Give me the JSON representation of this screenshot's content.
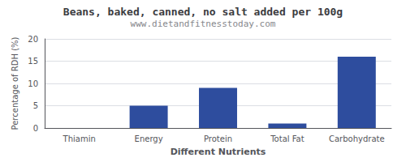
{
  "chart_data": {
    "type": "bar",
    "title": "Beans, baked, canned, no salt added per 100g",
    "subtitle": "www.dietandfitnesstoday.com",
    "xlabel": "Different Nutrients",
    "ylabel": "Percentage of RDH (%)",
    "categories": [
      "Thiamin",
      "Energy",
      "Protein",
      "Total Fat",
      "Carbohydrate"
    ],
    "values": [
      0,
      5,
      9,
      1,
      16
    ],
    "color": "#2e4d9e",
    "ylim": [
      0,
      20
    ],
    "yticks": [
      0,
      5,
      10,
      15,
      20
    ],
    "grid": true
  }
}
